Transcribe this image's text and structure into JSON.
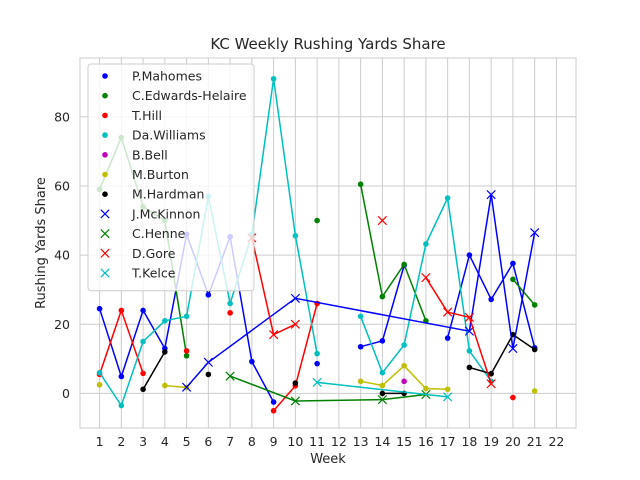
{
  "chart_data": {
    "type": "line",
    "title": "KC Weekly Rushing Yards Share",
    "xlabel": "Week",
    "ylabel": "Rushing Yards Share",
    "xlim": [
      0.1,
      22.9
    ],
    "ylim": [
      -10,
      97
    ],
    "x_ticks": [
      1,
      2,
      3,
      4,
      5,
      6,
      7,
      8,
      9,
      10,
      11,
      12,
      13,
      14,
      15,
      16,
      17,
      18,
      19,
      20,
      21,
      22
    ],
    "y_ticks": [
      0,
      20,
      40,
      60,
      80
    ],
    "grid": true,
    "legend_position": "top-left",
    "series": [
      {
        "name": "P.Mahomes",
        "color": "#0000ff",
        "marker": "dot",
        "points": [
          [
            1,
            24.5
          ],
          [
            2,
            4.9
          ],
          [
            3,
            24
          ],
          [
            4,
            13
          ],
          [
            5,
            46
          ],
          [
            6,
            28.5
          ],
          [
            7,
            45.3
          ],
          [
            8,
            9.2
          ],
          [
            9,
            -2.5
          ],
          [
            10,
            null
          ],
          [
            11,
            8.6
          ],
          [
            12,
            null
          ],
          [
            13,
            13.5
          ],
          [
            14,
            15.2
          ],
          [
            15,
            37
          ],
          [
            16,
            null
          ],
          [
            17,
            16
          ],
          [
            18,
            40
          ],
          [
            19,
            27.2
          ],
          [
            20,
            37.6
          ],
          [
            21,
            13.2
          ]
        ]
      },
      {
        "name": "C.Edwards-Helaire",
        "color": "#008000",
        "marker": "dot",
        "points": [
          [
            1,
            59
          ],
          [
            2,
            74
          ],
          [
            3,
            54
          ],
          [
            4,
            50
          ],
          [
            5,
            10.9
          ],
          [
            6,
            null
          ],
          [
            7,
            null
          ],
          [
            8,
            null
          ],
          [
            9,
            null
          ],
          [
            10,
            null
          ],
          [
            11,
            50
          ],
          [
            12,
            null
          ],
          [
            13,
            60.5
          ],
          [
            14,
            28
          ],
          [
            15,
            37.3
          ],
          [
            16,
            21
          ],
          [
            17,
            null
          ],
          [
            18,
            null
          ],
          [
            19,
            null
          ],
          [
            20,
            33
          ],
          [
            21,
            25.6
          ]
        ]
      },
      {
        "name": "T.Hill",
        "color": "#ff0000",
        "marker": "dot",
        "points": [
          [
            1,
            5.5
          ],
          [
            2,
            24
          ],
          [
            3,
            5.8
          ],
          [
            4,
            null
          ],
          [
            5,
            12.3
          ],
          [
            6,
            null
          ],
          [
            7,
            23.3
          ],
          [
            8,
            null
          ],
          [
            9,
            -5
          ],
          [
            10,
            2.2
          ],
          [
            11,
            26
          ],
          [
            12,
            null
          ],
          [
            13,
            null
          ],
          [
            14,
            null
          ],
          [
            15,
            null
          ],
          [
            16,
            null
          ],
          [
            17,
            null
          ],
          [
            18,
            null
          ],
          [
            19,
            null
          ],
          [
            20,
            -1.2
          ]
        ]
      },
      {
        "name": "Da.Williams",
        "color": "#00bfbf",
        "marker": "dot",
        "points": [
          [
            1,
            6
          ],
          [
            2,
            -3.5
          ],
          [
            3,
            15
          ],
          [
            4,
            21
          ],
          [
            5,
            22.3
          ],
          [
            6,
            57
          ],
          [
            7,
            26
          ],
          [
            8,
            46
          ],
          [
            9,
            91
          ],
          [
            10,
            45.6
          ],
          [
            11,
            11.5
          ],
          [
            12,
            null
          ],
          [
            13,
            22.3
          ],
          [
            14,
            6
          ],
          [
            15,
            14
          ],
          [
            16,
            43.2
          ],
          [
            17,
            56.5
          ],
          [
            18,
            12.3
          ],
          [
            19,
            3.5
          ]
        ]
      },
      {
        "name": "B.Bell",
        "color": "#bf00bf",
        "marker": "dot",
        "points": [
          [
            15,
            3.5
          ]
        ]
      },
      {
        "name": "M.Burton",
        "color": "#bfbf00",
        "marker": "dot",
        "points": [
          [
            1,
            2.5
          ],
          [
            2,
            null
          ],
          [
            3,
            null
          ],
          [
            4,
            2.3
          ],
          [
            5,
            1.7
          ],
          [
            6,
            null
          ],
          [
            7,
            null
          ],
          [
            8,
            null
          ],
          [
            9,
            null
          ],
          [
            10,
            null
          ],
          [
            11,
            null
          ],
          [
            12,
            null
          ],
          [
            13,
            3.5
          ],
          [
            14,
            2.3
          ],
          [
            15,
            8
          ],
          [
            16,
            1.4
          ],
          [
            17,
            1.2
          ],
          [
            18,
            null
          ],
          [
            19,
            null
          ],
          [
            20,
            null
          ],
          [
            21,
            0.7
          ]
        ]
      },
      {
        "name": "M.Hardman",
        "color": "#000000",
        "marker": "dot",
        "points": [
          [
            1,
            null
          ],
          [
            2,
            null
          ],
          [
            3,
            1.2
          ],
          [
            4,
            12
          ],
          [
            5,
            null
          ],
          [
            6,
            5.5
          ],
          [
            7,
            null
          ],
          [
            8,
            null
          ],
          [
            9,
            null
          ],
          [
            10,
            3
          ],
          [
            11,
            null
          ],
          [
            12,
            null
          ],
          [
            13,
            null
          ],
          [
            14,
            0
          ],
          [
            15,
            0
          ],
          [
            16,
            null
          ],
          [
            17,
            null
          ],
          [
            18,
            7.5
          ],
          [
            19,
            5.7
          ],
          [
            20,
            17
          ],
          [
            21,
            12.7
          ]
        ]
      },
      {
        "name": "J.McKinnon",
        "color": "#0000ff",
        "marker": "x",
        "points": [
          [
            5,
            1.8
          ],
          [
            6,
            9
          ],
          [
            10,
            27.5
          ],
          [
            18,
            18
          ],
          [
            19,
            57.5
          ],
          [
            20,
            13
          ],
          [
            21,
            46.5
          ]
        ]
      },
      {
        "name": "C.Henne",
        "color": "#008000",
        "marker": "x",
        "points": [
          [
            7,
            5
          ],
          [
            10,
            -2.2
          ],
          [
            14,
            -1.8
          ],
          [
            16,
            -0.3
          ]
        ]
      },
      {
        "name": "D.Gore",
        "color": "#ff0000",
        "marker": "x",
        "points": [
          [
            1,
            null
          ],
          [
            2,
            null
          ],
          [
            3,
            null
          ],
          [
            4,
            null
          ],
          [
            5,
            null
          ],
          [
            6,
            null
          ],
          [
            7,
            null
          ],
          [
            8,
            45
          ],
          [
            9,
            17
          ],
          [
            10,
            20
          ],
          [
            11,
            null
          ],
          [
            12,
            null
          ],
          [
            13,
            null
          ],
          [
            14,
            50
          ],
          [
            15,
            null
          ],
          [
            16,
            33.5
          ],
          [
            17,
            23.5
          ],
          [
            18,
            22
          ],
          [
            19,
            2.8
          ]
        ]
      },
      {
        "name": "T.Kelce",
        "color": "#00bfbf",
        "marker": "x",
        "points": [
          [
            11,
            3.2
          ],
          [
            17,
            -1
          ]
        ]
      }
    ]
  }
}
